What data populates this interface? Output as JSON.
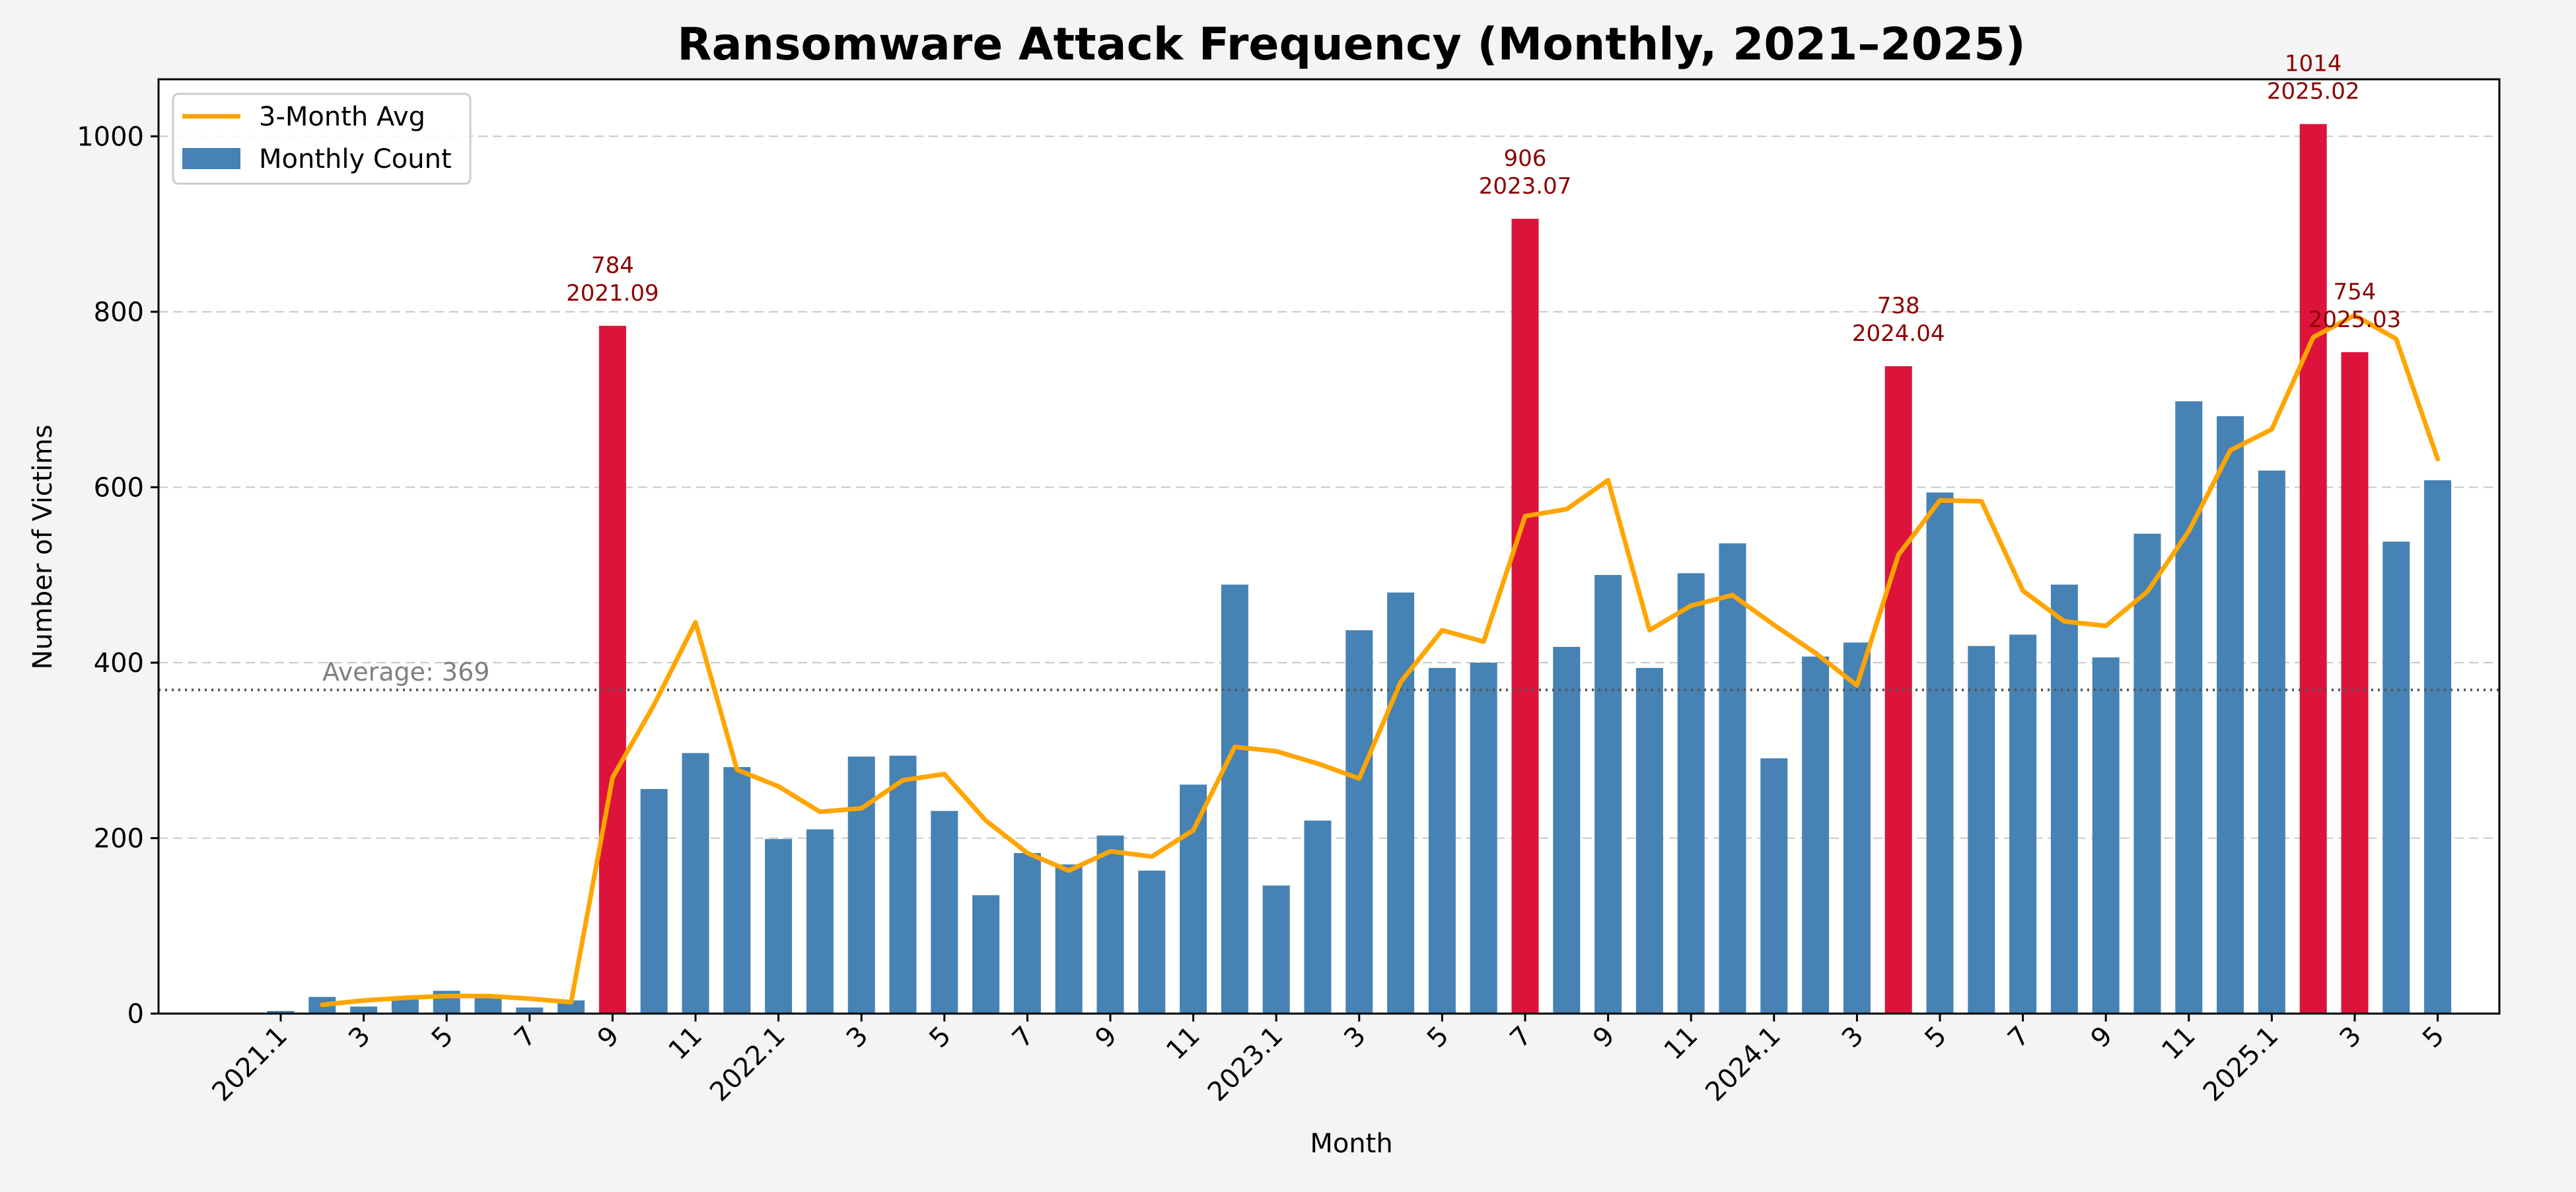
{
  "chart_data": {
    "type": "bar",
    "title": "Ransomware Attack Frequency (Monthly, 2021–2025)",
    "xlabel": "Month",
    "ylabel": "Number of Victims",
    "ylim": [
      0,
      1065
    ],
    "yticks": [
      0,
      200,
      400,
      600,
      800,
      1000
    ],
    "grid": "y-dashed",
    "legend_position": "top-left",
    "colors": {
      "bar": "#4682b4",
      "highlight": "#dc143c",
      "line": "#ffa500",
      "annotation": "#8b0000",
      "average": "#808080"
    },
    "categories": [
      "2021.01",
      "2021.02",
      "2021.03",
      "2021.04",
      "2021.05",
      "2021.06",
      "2021.07",
      "2021.08",
      "2021.09",
      "2021.10",
      "2021.11",
      "2021.12",
      "2022.01",
      "2022.02",
      "2022.03",
      "2022.04",
      "2022.05",
      "2022.06",
      "2022.07",
      "2022.08",
      "2022.09",
      "2022.10",
      "2022.11",
      "2022.12",
      "2023.01",
      "2023.02",
      "2023.03",
      "2023.04",
      "2023.05",
      "2023.06",
      "2023.07",
      "2023.08",
      "2023.09",
      "2023.10",
      "2023.11",
      "2023.12",
      "2024.01",
      "2024.02",
      "2024.03",
      "2024.04",
      "2024.05",
      "2024.06",
      "2024.07",
      "2024.08",
      "2024.09",
      "2024.10",
      "2024.11",
      "2024.12",
      "2025.01",
      "2025.02",
      "2025.03",
      "2025.04",
      "2025.05"
    ],
    "tick_labels": [
      "2021.1",
      "",
      "3",
      "",
      "5",
      "",
      "7",
      "",
      "9",
      "",
      "11",
      "",
      "2022.1",
      "",
      "3",
      "",
      "5",
      "",
      "7",
      "",
      "9",
      "",
      "11",
      "",
      "2023.1",
      "",
      "3",
      "",
      "5",
      "",
      "7",
      "",
      "9",
      "",
      "11",
      "",
      "2024.1",
      "",
      "3",
      "",
      "5",
      "",
      "7",
      "",
      "9",
      "",
      "11",
      "",
      "2025.1",
      "",
      "3",
      "",
      "5"
    ],
    "series": [
      {
        "name": "Monthly Count",
        "type": "bar",
        "values": [
          3,
          19,
          8,
          17,
          26,
          18,
          7,
          15,
          784,
          256,
          297,
          281,
          199,
          210,
          293,
          294,
          231,
          135,
          183,
          170,
          203,
          163,
          261,
          489,
          146,
          220,
          437,
          480,
          394,
          400,
          906,
          418,
          500,
          394,
          502,
          536,
          291,
          407,
          423,
          738,
          594,
          419,
          432,
          489,
          406,
          547,
          698,
          681,
          619,
          1014,
          754,
          538,
          608
        ]
      },
      {
        "name": "3-Month Avg",
        "type": "line",
        "values": [
          null,
          10,
          15,
          18,
          20,
          20,
          17,
          13,
          269,
          352,
          446,
          278,
          259,
          230,
          234,
          266,
          273,
          220,
          183,
          163,
          185,
          179,
          209,
          304,
          299,
          285,
          268,
          378,
          437,
          424,
          567,
          575,
          608,
          437,
          465,
          477,
          443,
          411,
          374,
          523,
          585,
          584,
          482,
          447,
          442,
          481,
          550,
          642,
          666,
          771,
          796,
          769,
          632
        ]
      }
    ],
    "highlights": [
      "2021.09",
      "2023.07",
      "2024.04",
      "2025.02",
      "2025.03"
    ],
    "annotations": [
      {
        "value": "784",
        "date": "2021.09"
      },
      {
        "value": "906",
        "date": "2023.07"
      },
      {
        "value": "738",
        "date": "2024.04"
      },
      {
        "value": "1014",
        "date": "2025.02"
      },
      {
        "value": "754",
        "date": "2025.03"
      }
    ],
    "average": {
      "value": 369,
      "label": "Average: 369"
    }
  }
}
